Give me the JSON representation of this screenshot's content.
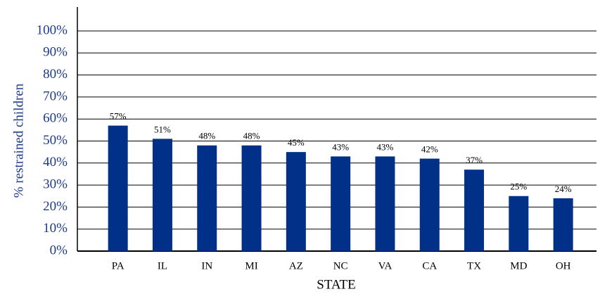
{
  "chart_data": {
    "type": "bar",
    "x_label": "STATE",
    "y_label": "% restrained children",
    "categories": [
      "PA",
      "IL",
      "IN",
      "MI",
      "AZ",
      "NC",
      "VA",
      "CA",
      "TX",
      "MD",
      "OH"
    ],
    "values": [
      57,
      51,
      48,
      48,
      45,
      43,
      43,
      42,
      37,
      25,
      24
    ],
    "value_labels": [
      "57%",
      "51%",
      "48%",
      "48%",
      "45%",
      "43%",
      "43%",
      "42%",
      "37%",
      "25%",
      "24%"
    ],
    "color": "#003087",
    "ylim": [
      0,
      100
    ],
    "yticks": [
      {
        "value": 0,
        "label": "0%"
      },
      {
        "value": 10,
        "label": "10%"
      },
      {
        "value": 20,
        "label": "20%"
      },
      {
        "value": 30,
        "label": "30%"
      },
      {
        "value": 40,
        "label": "40%"
      },
      {
        "value": 50,
        "label": "50%"
      },
      {
        "value": 60,
        "label": "60%"
      },
      {
        "value": 70,
        "label": "70%"
      },
      {
        "value": 80,
        "label": "80%"
      },
      {
        "value": 90,
        "label": "90%"
      },
      {
        "value": 100,
        "label": "100%"
      }
    ],
    "grid": true
  }
}
